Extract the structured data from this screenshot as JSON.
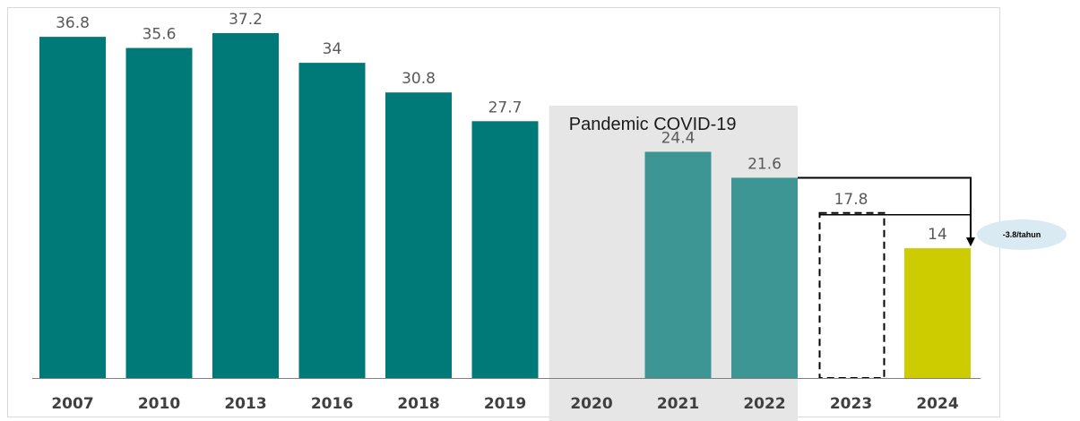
{
  "chart_data": {
    "type": "bar",
    "categories": [
      "2007",
      "2010",
      "2013",
      "2016",
      "2018",
      "2019",
      "2020",
      "2021",
      "2022",
      "2023",
      "2024"
    ],
    "values": [
      36.8,
      35.6,
      37.2,
      34,
      30.8,
      27.7,
      null,
      24.4,
      21.6,
      17.8,
      14
    ],
    "value_labels": [
      "36.8",
      "35.6",
      "37.2",
      "34",
      "30.8",
      "27.7",
      "",
      "24.4",
      "21.6",
      "17.8",
      "14"
    ],
    "bar_styles": [
      "solid",
      "solid",
      "solid",
      "solid",
      "solid",
      "solid",
      "none",
      "solid",
      "solid",
      "dashed-outline",
      "highlight"
    ],
    "ylim": [
      0,
      40
    ],
    "title": "",
    "xlabel": "",
    "ylabel": "",
    "grid": false,
    "shaded_region": {
      "label": "Pandemic COVID-19",
      "from": "2020",
      "to": "2022"
    },
    "annotation": {
      "label": "-3.8/tahun",
      "from": "2022",
      "to": "2024"
    }
  },
  "colors": {
    "bar_main": "#007a78",
    "bar_pandemic": "#3d9694",
    "bar_highlight": "#cdcc00",
    "shade": "#e6e6e6",
    "annotation_bubble": "#d9eaf2",
    "dashed": "#000000",
    "axis": "#7f7f7f"
  }
}
